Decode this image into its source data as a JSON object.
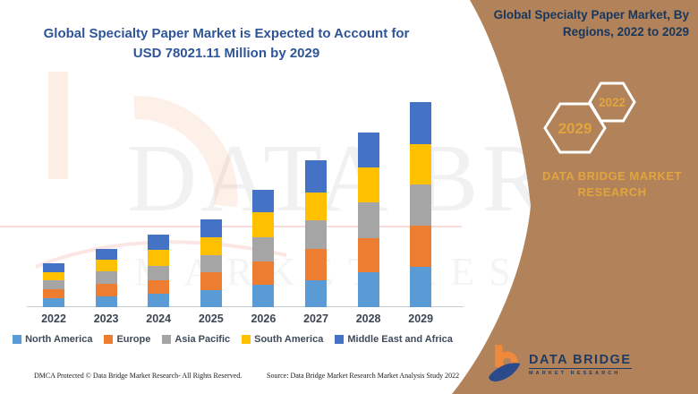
{
  "main_title": "Global Specialty Paper Market is Expected to Account for USD 78021.11 Million by 2029",
  "chart_data": {
    "type": "bar",
    "stacked": true,
    "title": "Global Specialty Paper Market is Expected to Account for USD 78021.11 Million by 2029",
    "unit": "USD Million",
    "xlabel": "",
    "ylabel": "",
    "ylim": [
      0,
      80000
    ],
    "grid": false,
    "legend_position": "bottom",
    "categories": [
      "2022",
      "2023",
      "2024",
      "2025",
      "2026",
      "2027",
      "2028",
      "2029"
    ],
    "series": [
      {
        "name": "North America",
        "color": "#5B9BD5",
        "values": [
          3400,
          4100,
          5100,
          6500,
          8500,
          10200,
          13300,
          15300
        ]
      },
      {
        "name": "Europe",
        "color": "#ED7D31",
        "values": [
          3400,
          4800,
          5100,
          6800,
          8900,
          11900,
          12900,
          15700
        ]
      },
      {
        "name": "Asia Pacific",
        "color": "#A5A5A5",
        "values": [
          3400,
          4800,
          5500,
          6500,
          9200,
          10900,
          13600,
          15700
        ]
      },
      {
        "name": "South America",
        "color": "#FFC000",
        "values": [
          3250,
          4400,
          6100,
          6800,
          9500,
          10600,
          13300,
          15300
        ]
      },
      {
        "name": "Middle East and Africa",
        "color": "#4472C4",
        "values": [
          3250,
          4100,
          5800,
          6800,
          8500,
          12300,
          13300,
          16021.11
        ]
      }
    ],
    "totals": [
      16700,
      22200,
      27600,
      33400,
      44600,
      55900,
      66400,
      78021.11
    ]
  },
  "side_panel": {
    "title": "Global Specialty Paper Market, By Regions, 2022 to 2029",
    "bg_color": "#b2835a",
    "gold": "#e2a43d",
    "hexagons": [
      "2029",
      "2022"
    ],
    "brand_line1": "DATA BRIDGE MARKET",
    "brand_line2": "RESEARCH"
  },
  "logo": {
    "name": "DATA BRIDGE",
    "tagline": "MARKET RESEARCH"
  },
  "watermark": {
    "big_text": "DATA BRIDGE",
    "sub_text": "MARKET RESEARCH"
  },
  "footer": {
    "dmca": "DMCA Protected © Data Bridge Market Research- All Rights Reserved.",
    "source": "Source: Data Bridge Market Research Market Analysis Study 2022"
  }
}
